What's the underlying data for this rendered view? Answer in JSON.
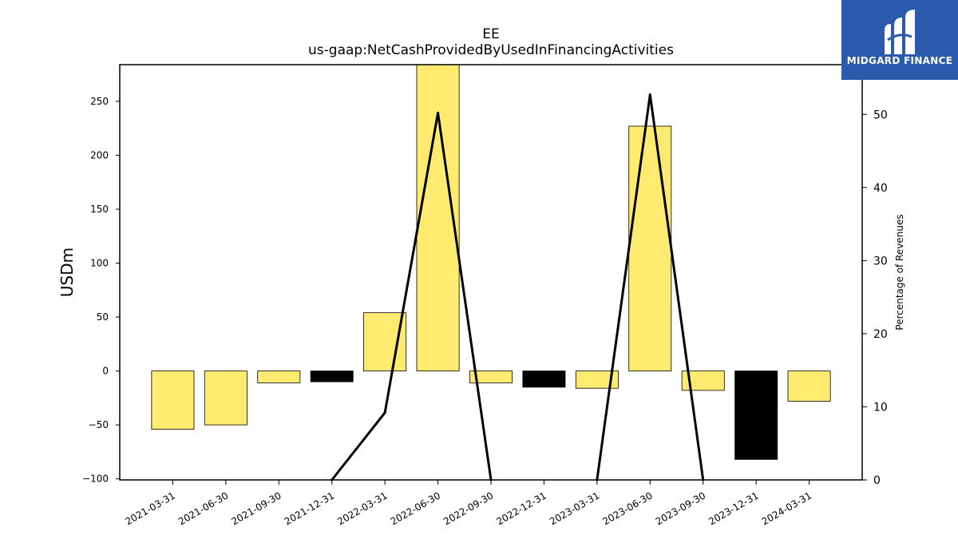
{
  "logo": {
    "text": "MIDGARD FINANCE",
    "icon": "midgard-m-logo-icon",
    "background": "#2b5aad"
  },
  "chart_data": {
    "type": "bar",
    "title": "EE",
    "subtitle": "us-gaap:NetCashProvidedByUsedInFinancingActivities",
    "ylabel": "USDm",
    "ylabel_right": "Percentage of Revenues",
    "categories": [
      "2021-03-31",
      "2021-06-30",
      "2021-09-30",
      "2021-12-31",
      "2022-03-31",
      "2022-06-30",
      "2022-09-30",
      "2022-12-31",
      "2023-03-31",
      "2023-06-30",
      "2023-09-30",
      "2023-12-31",
      "2024-03-31"
    ],
    "series": [
      {
        "values": [
          -54,
          -50,
          -11,
          -10,
          54,
          287,
          -11,
          -15,
          -16,
          227,
          -18,
          -82,
          -28
        ]
      },
      {
        "axis": "right",
        "type": "line",
        "values": [
          null,
          null,
          null,
          0,
          9.2,
          50.2,
          0,
          null,
          0,
          52.7,
          0,
          null,
          null
        ]
      }
    ],
    "bar_colors": [
      "#ffeb70",
      "#ffeb70",
      "#ffeb70",
      "#000000",
      "#ffeb70",
      "#ffeb70",
      "#ffeb70",
      "#000000",
      "#ffeb70",
      "#ffeb70",
      "#ffeb70",
      "#000000",
      "#ffeb70"
    ],
    "line_color": "#000000",
    "ylim": [
      -101,
      284
    ],
    "yticks": [
      -100,
      -50,
      0,
      50,
      100,
      150,
      200,
      250
    ],
    "ylim_right": [
      0,
      56.8
    ],
    "yticks_right": [
      0,
      10,
      20,
      30,
      40,
      50
    ],
    "grid": false,
    "legend": "none"
  }
}
